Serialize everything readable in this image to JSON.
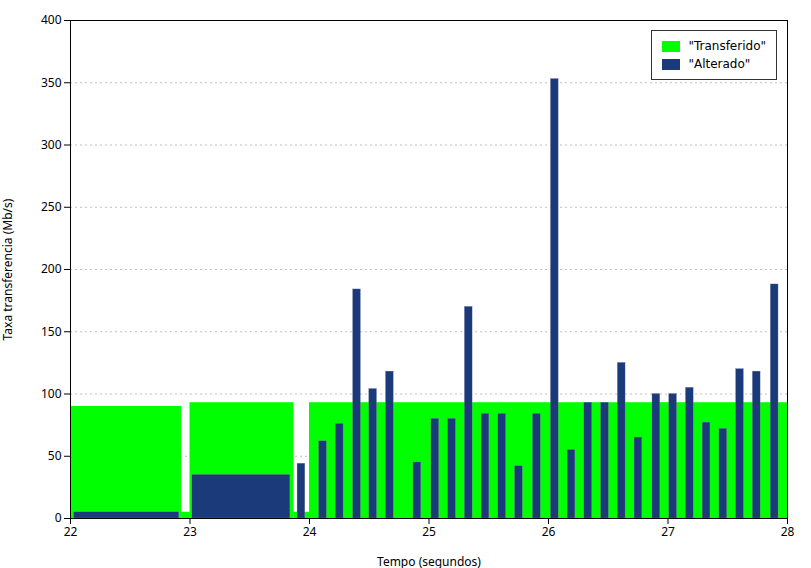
{
  "chart_data": {
    "type": "bar",
    "xlabel": "Tempo (segundos)",
    "ylabel": "Taxa transferencia (Mb/s)",
    "xlim": [
      22,
      28
    ],
    "ylim": [
      0,
      400
    ],
    "xticks": [
      22,
      23,
      24,
      25,
      26,
      27,
      28
    ],
    "yticks": [
      0,
      50,
      100,
      150,
      200,
      250,
      300,
      350,
      400
    ],
    "grid": true,
    "legend": "upper right",
    "series": [
      {
        "name": "\"Transferido\"",
        "type": "area",
        "color": "#00ff00",
        "x_start": [
          22.0,
          22.93,
          23.0,
          23.87,
          24.0
        ],
        "x_end": [
          22.93,
          23.0,
          23.87,
          24.0,
          28.0
        ],
        "values": [
          90,
          5,
          93,
          5,
          93
        ]
      },
      {
        "name": "\"Alterado\"",
        "type": "bar",
        "color": "#1a3a7a",
        "x": [
          22.03,
          23.02,
          23.9,
          24.08,
          24.22,
          24.365,
          24.5,
          24.64,
          24.87,
          25.02,
          25.16,
          25.3,
          25.44,
          25.58,
          25.72,
          25.87,
          26.02,
          26.16,
          26.3,
          26.44,
          26.58,
          26.72,
          26.87,
          27.01,
          27.15,
          27.29,
          27.43,
          27.57,
          27.71,
          27.86
        ],
        "width": [
          0.88,
          0.82,
          0.065,
          0.065,
          0.065,
          0.065,
          0.065,
          0.065,
          0.065,
          0.065,
          0.065,
          0.065,
          0.065,
          0.065,
          0.065,
          0.065,
          0.065,
          0.065,
          0.065,
          0.065,
          0.065,
          0.065,
          0.065,
          0.065,
          0.065,
          0.065,
          0.065,
          0.065,
          0.065,
          0.065
        ],
        "values": [
          5,
          35,
          44,
          62,
          76,
          184,
          104,
          118,
          45,
          80,
          80,
          170,
          84,
          84,
          42,
          84,
          353,
          55,
          93,
          93,
          125,
          65,
          100,
          100,
          105,
          77,
          72,
          120,
          118,
          188
        ]
      }
    ]
  }
}
